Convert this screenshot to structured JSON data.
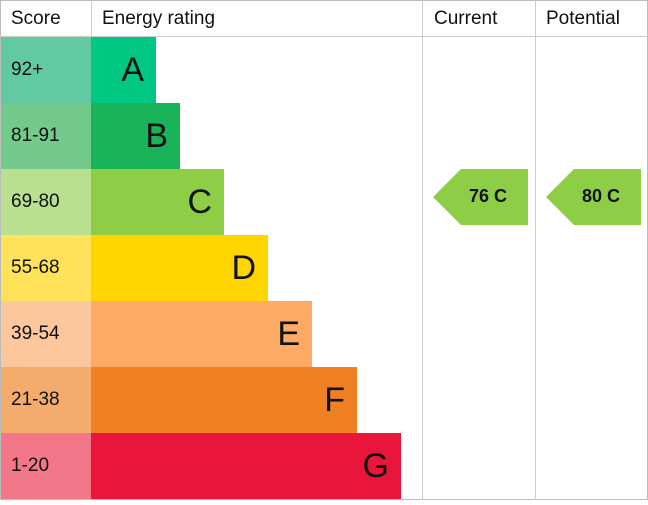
{
  "header": {
    "score": "Score",
    "rating": "Energy rating",
    "current": "Current",
    "potential": "Potential"
  },
  "bands": [
    {
      "score": "92+",
      "letter": "A",
      "color": "#00c781",
      "score_color": "#63c9a2"
    },
    {
      "score": "81-91",
      "letter": "B",
      "color": "#19b459",
      "score_color": "#73ca8b"
    },
    {
      "score": "69-80",
      "letter": "C",
      "color": "#8dce46",
      "score_color": "#b8e08e"
    },
    {
      "score": "55-68",
      "letter": "D",
      "color": "#ffd500",
      "score_color": "#ffe25a"
    },
    {
      "score": "39-54",
      "letter": "E",
      "color": "#fcaa65",
      "score_color": "#fdc79e"
    },
    {
      "score": "21-38",
      "letter": "F",
      "color": "#ef8023",
      "score_color": "#f4ac6c"
    },
    {
      "score": "1-20",
      "letter": "G",
      "color": "#e9153b",
      "score_color": "#f27889"
    }
  ],
  "current": {
    "label": "76 C",
    "color": "#8dce46"
  },
  "potential": {
    "label": "80 C",
    "color": "#8dce46"
  }
}
